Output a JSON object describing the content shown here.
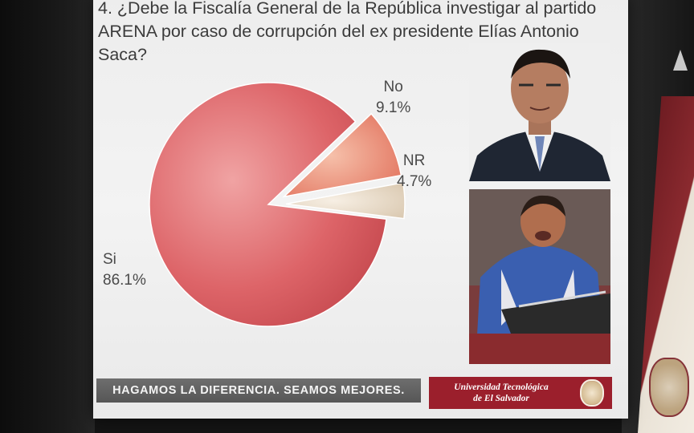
{
  "question": {
    "line1": "4. ¿Debe la Fiscalía General de la República investigar al partido",
    "line2": "ARENA por caso de corrupción del ex presidente Elías Antonio",
    "line3": "Saca?"
  },
  "chart_data": {
    "type": "pie",
    "title": "",
    "slices": [
      {
        "label": "Si",
        "value": 86.1,
        "display": "86.1%",
        "color": "#d6585d"
      },
      {
        "label": "No",
        "value": 9.1,
        "display": "9.1%",
        "color": "#e2735e"
      },
      {
        "label": "NR",
        "value": 4.7,
        "display": "4.7%",
        "color": "#d9c8b2"
      }
    ],
    "exploded": [
      "No",
      "NR"
    ],
    "legend": "none"
  },
  "photos": {
    "top": "portrait-man-suit-icon",
    "bottom": "man-speaking-podium-icon"
  },
  "footer": {
    "slogan": "HAGAMOS LA DIFERENCIA. SEAMOS MEJORES.",
    "logo_line1": "Universidad Tecnológica",
    "logo_line2": "de El Salvador"
  },
  "colors": {
    "slide_bg": "#efefef",
    "footer_bar": "#616161",
    "logo_bg": "#9b1f2c"
  }
}
